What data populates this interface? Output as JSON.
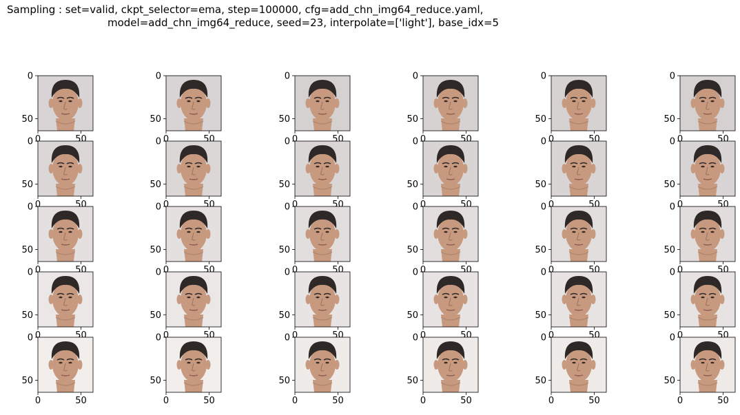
{
  "figure": {
    "title_line1": "Sampling : set=valid, ckpt_selector=ema, step=100000, cfg=add_chn_img64_reduce.yaml,",
    "title_line2": "model=add_chn_img64_reduce, seed=23, interpolate=['light'], base_idx=5"
  },
  "grid": {
    "rows": 5,
    "cols": 6,
    "y_ticks": [
      "0",
      "50"
    ],
    "x_ticks": [
      "0",
      "50"
    ],
    "image_size": 64,
    "background_colors": [
      [
        "#d8d3d4",
        "#d8d3d4",
        "#d6d1d1",
        "#d7d2d2",
        "#d7d2d2",
        "#d6d1d1"
      ],
      [
        "#dcd7d7",
        "#dcd7d7",
        "#dbd6d6",
        "#dad5d5",
        "#dad5d5",
        "#d9d4d5"
      ],
      [
        "#e4e0e0",
        "#e4e0e0",
        "#e2dede",
        "#e2dede",
        "#e2dede",
        "#e1dddd"
      ],
      [
        "#ebe7e6",
        "#ebe7e6",
        "#e8e4e3",
        "#e8e4e3",
        "#e8e4e3",
        "#e7e3e3"
      ],
      [
        "#f1eeec",
        "#f1eeec",
        "#efebe9",
        "#efebe9",
        "#efebe9",
        "#eeeae8"
      ]
    ],
    "skin_color": "#c79a80",
    "hair_color": "#2e2826",
    "shadow_color": "#9c7460"
  }
}
